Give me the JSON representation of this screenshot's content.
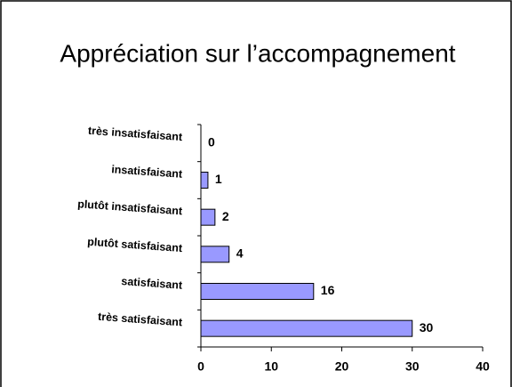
{
  "chart_data": {
    "type": "bar",
    "orientation": "horizontal",
    "title": "Appréciation sur l’accompagnement",
    "categories": [
      "très insatisfaisant",
      "insatisfaisant",
      "plutôt insatisfaisant",
      "plutôt satisfaisant",
      "satisfaisant",
      "très satisfaisant"
    ],
    "values": [
      0,
      1,
      2,
      4,
      16,
      30
    ],
    "color": "#9999ff",
    "xlim": [
      0,
      40
    ],
    "xticks": [
      0,
      10,
      20,
      30,
      40
    ],
    "grid": false
  }
}
